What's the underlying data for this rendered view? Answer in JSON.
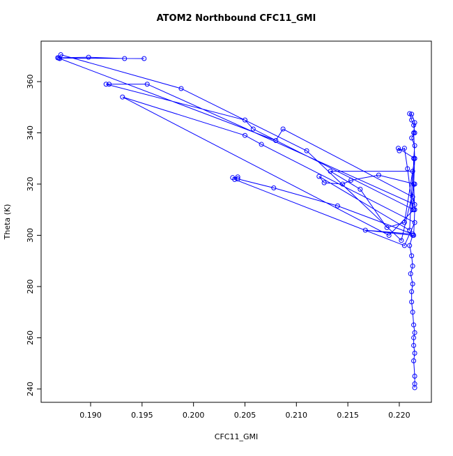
{
  "chart_data": {
    "type": "line",
    "title": "ATOM2 Northbound CFC11_GMI",
    "x_label": "CFC11_GMI",
    "y_label": "Theta (K)",
    "color": "#0000ff",
    "markers": true,
    "x": [
      0.2215,
      0.2215,
      0.2215,
      0.2214,
      0.2215,
      0.2214,
      0.2214,
      0.2215,
      0.2214,
      0.2213,
      0.2212,
      0.2212,
      0.2213,
      0.2211,
      0.2213,
      0.2212,
      0.221,
      0.2213,
      0.2167,
      0.2213,
      0.214,
      0.2078,
      0.2043,
      0.2038,
      0.2043,
      0.204,
      0.2205,
      0.2215,
      0.2066,
      0.205,
      0.1931,
      0.219,
      0.2214,
      0.2058,
      0.205,
      0.1915,
      0.1918,
      0.1955,
      0.2215,
      0.2213,
      0.2087,
      0.208,
      0.187,
      0.1868,
      0.1898,
      0.1933,
      0.1952,
      0.1869,
      0.1871,
      0.1988,
      0.211,
      0.2202,
      0.2215,
      0.218,
      0.2153,
      0.2145,
      0.2127,
      0.2122,
      0.221,
      0.2213,
      0.2133,
      0.2162,
      0.2188,
      0.2205,
      0.2215,
      0.2199,
      0.22,
      0.2205,
      0.2208,
      0.2213,
      0.2214,
      0.2215,
      0.2212,
      0.2215,
      0.2214,
      0.2212,
      0.221,
      0.2212,
      0.2215,
      0.2214,
      0.2215,
      0.2214,
      0.2215,
      0.2214
    ],
    "values": [
      240.5,
      242,
      245,
      251,
      254,
      257,
      260,
      262,
      265,
      270,
      274,
      278,
      281,
      285,
      288,
      292,
      296,
      300,
      302,
      300.5,
      311.5,
      318.5,
      322,
      322.5,
      322.8,
      321.8,
      296,
      305,
      335.5,
      339,
      354,
      300,
      310,
      341.5,
      345,
      359,
      359,
      359,
      312,
      315,
      341.5,
      337,
      369,
      369.3,
      369.5,
      369,
      369,
      369.2,
      370.5,
      357.3,
      333,
      298,
      320,
      323.5,
      321.5,
      320,
      320.5,
      323,
      302,
      325,
      325,
      318,
      303,
      305,
      330,
      334,
      333,
      334,
      326,
      310,
      330,
      335,
      338,
      340,
      343,
      345,
      347.5,
      347.3,
      344,
      340,
      330,
      320,
      310,
      300
    ],
    "xlim": [
      0.18519,
      0.22312
    ],
    "ylim": [
      234.8,
      375.8
    ],
    "xticks": [
      {
        "value": 0.19,
        "label": "0.190"
      },
      {
        "value": 0.195,
        "label": "0.195"
      },
      {
        "value": 0.2,
        "label": "0.200"
      },
      {
        "value": 0.205,
        "label": "0.205"
      },
      {
        "value": 0.21,
        "label": "0.210"
      },
      {
        "value": 0.215,
        "label": "0.215"
      },
      {
        "value": 0.22,
        "label": "0.220"
      }
    ],
    "yticks": [
      240,
      260,
      280,
      300,
      320,
      340,
      360
    ]
  }
}
